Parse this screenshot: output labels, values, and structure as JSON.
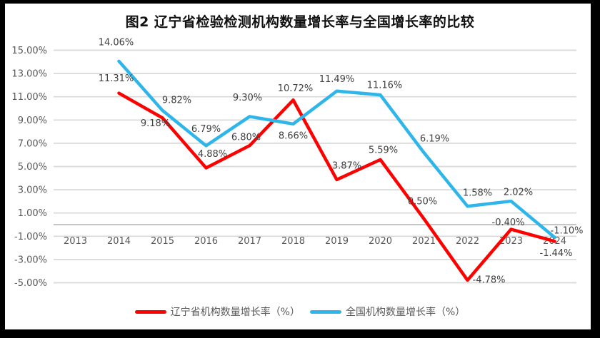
{
  "colors": {
    "liaoning_series": "#FF0000",
    "national_series": "#2EB6EA",
    "gridline": "#D9D9D9",
    "zero_axis": "#BFBFBF",
    "tick_text": "#595959",
    "data_label_text": "#404040",
    "frame": "#000000",
    "background": "#FFFFFF"
  },
  "chart_data": {
    "type": "line",
    "title": "图2 辽宁省检验检测机构数量增长率与全国增长率的比较",
    "categories": [
      "2013",
      "2014",
      "2015",
      "2016",
      "2017",
      "2018",
      "2019",
      "2020",
      "2021",
      "2022",
      "2023",
      "2024"
    ],
    "series": [
      {
        "name": "辽宁省机构数量增长率（%）",
        "color": "#FF0000",
        "values": [
          null,
          11.31,
          9.18,
          4.88,
          6.8,
          10.72,
          3.87,
          5.59,
          0.5,
          -4.78,
          -0.4,
          -1.44
        ],
        "labels": [
          null,
          "11.31%",
          "9.18%",
          "4.88%",
          "6.80%",
          "10.72%",
          "3.87%",
          "5.59%",
          "0.50%",
          "-4.78%",
          "-0.40%",
          "-1.44%"
        ],
        "label_offsets": [
          null,
          [
            -4,
            -21
          ],
          [
            -10,
            7
          ],
          [
            9,
            -20
          ],
          [
            -5,
            -12
          ],
          [
            3,
            -17
          ],
          [
            14,
            -20
          ],
          [
            4,
            -14
          ],
          [
            -2,
            -25
          ],
          [
            30,
            -1
          ],
          [
            -4,
            -10
          ],
          [
            2,
            16
          ]
        ]
      },
      {
        "name": "全国机构数量增长率（%）",
        "color": "#2EB6EA",
        "values": [
          null,
          14.06,
          9.82,
          6.79,
          9.3,
          8.66,
          11.49,
          11.16,
          6.19,
          1.58,
          2.02,
          -1.1
        ],
        "labels": [
          null,
          "14.06%",
          "9.82%",
          "6.79%",
          "9.30%",
          "8.66%",
          "11.49%",
          "11.16%",
          "6.19%",
          "1.58%",
          "2.02%",
          "-1.10%"
        ],
        "label_offsets": [
          null,
          [
            -4,
            -27
          ],
          [
            20,
            -15
          ],
          [
            0,
            -24
          ],
          [
            -3,
            -27
          ],
          [
            0,
            16
          ],
          [
            0,
            -17
          ],
          [
            6,
            -14
          ],
          [
            15,
            -20
          ],
          [
            14,
            -19
          ],
          [
            10,
            -13
          ],
          [
            17,
            -10
          ]
        ]
      }
    ],
    "y_axis": {
      "min": -5,
      "max": 15,
      "step": 2,
      "ticks": [
        15,
        13,
        11,
        9,
        7,
        5,
        3,
        1,
        -1,
        -3,
        -5
      ],
      "tick_labels": [
        "15.00%",
        "13.00%",
        "11.00%",
        "9.00%",
        "7.00%",
        "5.00%",
        "3.00%",
        "1.00%",
        "-1.00%",
        "-3.00%",
        "-5.00%"
      ]
    },
    "grid": true,
    "legend_position": "bottom"
  }
}
